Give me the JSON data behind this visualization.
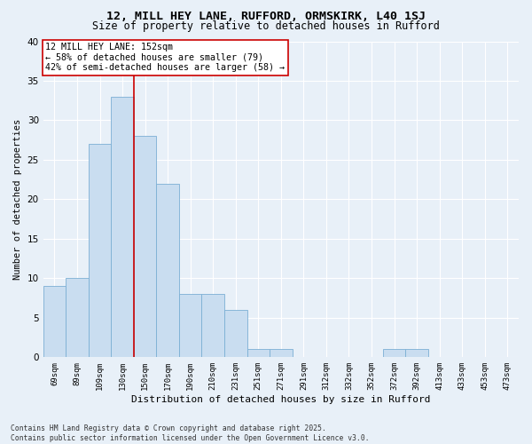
{
  "title1": "12, MILL HEY LANE, RUFFORD, ORMSKIRK, L40 1SJ",
  "title2": "Size of property relative to detached houses in Rufford",
  "xlabel": "Distribution of detached houses by size in Rufford",
  "ylabel": "Number of detached properties",
  "bins": [
    "69sqm",
    "89sqm",
    "109sqm",
    "130sqm",
    "150sqm",
    "170sqm",
    "190sqm",
    "210sqm",
    "231sqm",
    "251sqm",
    "271sqm",
    "291sqm",
    "312sqm",
    "332sqm",
    "352sqm",
    "372sqm",
    "392sqm",
    "413sqm",
    "433sqm",
    "453sqm",
    "473sqm"
  ],
  "bar_values": [
    9,
    10,
    27,
    33,
    28,
    22,
    8,
    8,
    6,
    1,
    1,
    0,
    0,
    0,
    0,
    1,
    1,
    0,
    0,
    0,
    0
  ],
  "bar_color": "#c9ddf0",
  "bar_edge_color": "#7bafd4",
  "background_color": "#e8f0f8",
  "grid_color": "#ffffff",
  "vline_x": 3.5,
  "vline_color": "#cc0000",
  "annotation_text": "12 MILL HEY LANE: 152sqm\n← 58% of detached houses are smaller (79)\n42% of semi-detached houses are larger (58) →",
  "annotation_box_color": "#ffffff",
  "annotation_box_edge": "#cc0000",
  "footer": "Contains HM Land Registry data © Crown copyright and database right 2025.\nContains public sector information licensed under the Open Government Licence v3.0.",
  "ylim": [
    0,
    40
  ],
  "yticks": [
    0,
    5,
    10,
    15,
    20,
    25,
    30,
    35,
    40
  ]
}
